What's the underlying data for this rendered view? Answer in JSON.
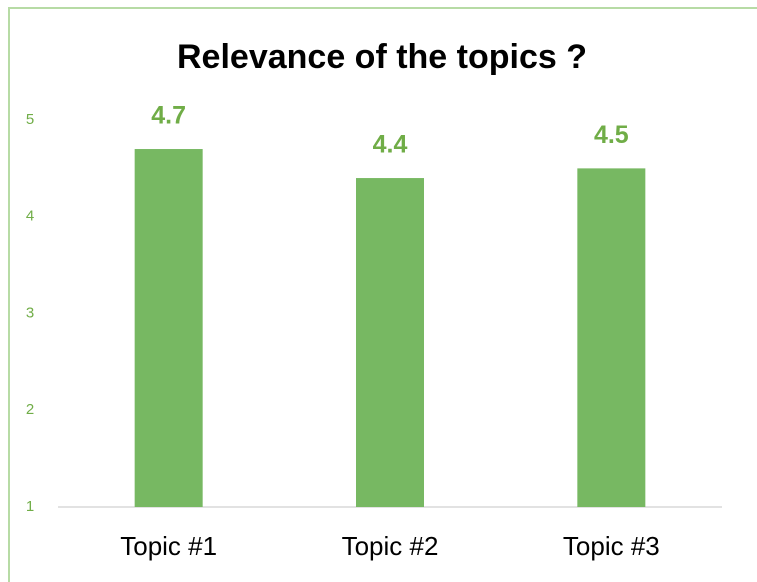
{
  "chart_data": {
    "type": "bar",
    "title": "Relevance of the topics ?",
    "categories": [
      "Topic #1",
      "Topic #2",
      "Topic #3"
    ],
    "values": [
      4.7,
      4.4,
      4.5
    ],
    "color": "#77b862",
    "ylim": [
      1,
      5
    ],
    "yticks": [
      1,
      2,
      3,
      4,
      5
    ],
    "grid": false
  }
}
